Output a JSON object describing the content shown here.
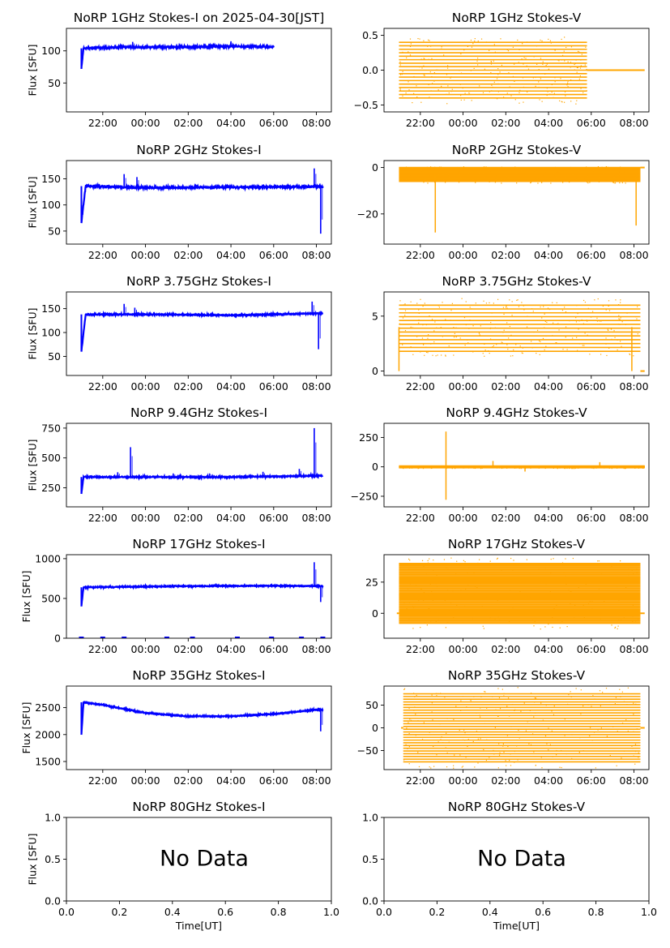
{
  "figure": {
    "rows": 7,
    "cols": 2,
    "colors": {
      "stokes_i": "#0000ff",
      "stokes_v": "#ffa500",
      "axis": "#000000"
    },
    "time_ticks": [
      "22:00",
      "00:00",
      "02:00",
      "04:00",
      "06:00",
      "08:00"
    ]
  },
  "chart_data": [
    {
      "id": "1ghz-i",
      "type": "scatter",
      "series_type": "I",
      "title": "NoRP 1GHz Stokes-I on 2025-04-30[JST]",
      "ylabel": "Flux [SFU]",
      "ylim": [
        5,
        135
      ],
      "yticks": [
        50,
        100
      ],
      "xlim_hours": [
        -3.7,
        8.7
      ],
      "t_start": -3.0,
      "t_end": 6.0,
      "baseline": 105,
      "start_value": 72,
      "noise": 2,
      "spike_times": [
        -0.6,
        4.0
      ],
      "spike_heights": [
        8,
        8
      ],
      "points": [
        [
          -3.0,
          72
        ],
        [
          -2.9,
          104
        ],
        [
          -1.0,
          106
        ],
        [
          0.0,
          106
        ],
        [
          2.0,
          106
        ],
        [
          4.0,
          107
        ],
        [
          6.0,
          106
        ]
      ]
    },
    {
      "id": "1ghz-v",
      "type": "scatter",
      "series_type": "V",
      "title": "NoRP 1GHz Stokes-V",
      "ylabel": "",
      "ylim": [
        -0.6,
        0.6
      ],
      "yticks": [
        -0.5,
        0.0,
        0.5
      ],
      "xlim_hours": [
        -3.7,
        8.7
      ],
      "t_start": -3.0,
      "t_end": 5.8,
      "band_min": -0.4,
      "band_max": 0.4,
      "band_step": 0.05,
      "tail_end": 8.5,
      "tail_value": 0.0
    },
    {
      "id": "2ghz-i",
      "type": "scatter",
      "series_type": "I",
      "title": "NoRP 2GHz Stokes-I",
      "ylabel": "Flux [SFU]",
      "ylim": [
        25,
        185
      ],
      "yticks": [
        50,
        100,
        150
      ],
      "xlim_hours": [
        -3.7,
        8.7
      ],
      "t_start": -3.0,
      "t_end": 8.3,
      "baseline": 133,
      "start_value": 66,
      "noise": 3,
      "spike_times": [
        -1.0,
        -0.4,
        7.9,
        8.2
      ],
      "spike_heights": [
        25,
        20,
        35,
        -90
      ],
      "points": [
        [
          -3.0,
          66
        ],
        [
          -2.8,
          136
        ],
        [
          0.0,
          133
        ],
        [
          4.0,
          134
        ],
        [
          8.0,
          135
        ]
      ]
    },
    {
      "id": "2ghz-v",
      "type": "scatter",
      "series_type": "V",
      "title": "NoRP 2GHz Stokes-V",
      "ylabel": "",
      "ylim": [
        -33,
        3
      ],
      "yticks": [
        -20,
        0
      ],
      "xlim_hours": [
        -3.7,
        8.7
      ],
      "t_start": -3.0,
      "t_end": 8.3,
      "band_min": -6,
      "band_max": 0,
      "band_step": 0.4,
      "tail_end": 8.5,
      "tail_value": 0,
      "dips": [
        [
          -1.3,
          -28
        ],
        [
          8.1,
          -25
        ]
      ]
    },
    {
      "id": "3_75ghz-i",
      "type": "scatter",
      "series_type": "I",
      "title": "NoRP 3.75GHz Stokes-I",
      "ylabel": "Flux [SFU]",
      "ylim": [
        10,
        185
      ],
      "yticks": [
        50,
        100,
        150
      ],
      "xlim_hours": [
        -3.7,
        8.7
      ],
      "t_start": -3.0,
      "t_end": 8.3,
      "baseline": 138,
      "start_value": 60,
      "noise": 2,
      "spike_times": [
        -1.0,
        -0.5,
        7.8,
        8.1
      ],
      "spike_heights": [
        22,
        14,
        25,
        -75
      ],
      "points": [
        [
          -3.0,
          60
        ],
        [
          -2.8,
          138
        ],
        [
          0.0,
          138
        ],
        [
          4.0,
          136
        ],
        [
          8.0,
          140
        ]
      ]
    },
    {
      "id": "3_75ghz-v",
      "type": "scatter",
      "series_type": "V",
      "title": "NoRP 3.75GHz Stokes-V",
      "ylabel": "",
      "ylim": [
        -0.4,
        7.2
      ],
      "yticks": [
        0,
        5
      ],
      "xlim_hours": [
        -3.7,
        8.7
      ],
      "t_start": -3.0,
      "t_end": 8.3,
      "band_min": 1.8,
      "band_max": 6.2,
      "band_step": 0.35,
      "tail_end": 8.5,
      "tail_value": 0,
      "dips": [
        [
          -3.0,
          0
        ],
        [
          7.9,
          0
        ]
      ]
    },
    {
      "id": "9_4ghz-i",
      "type": "scatter",
      "series_type": "I",
      "title": "NoRP 9.4GHz Stokes-I",
      "ylabel": "Flux [SFU]",
      "ylim": [
        90,
        790
      ],
      "yticks": [
        250,
        500,
        750
      ],
      "xlim_hours": [
        -3.7,
        8.7
      ],
      "t_start": -3.0,
      "t_end": 8.3,
      "baseline": 340,
      "start_value": 200,
      "noise": 8,
      "spike_times": [
        -0.7,
        -1.3,
        1.3,
        3.0,
        5.5,
        7.2,
        7.9
      ],
      "spike_heights": [
        250,
        40,
        30,
        30,
        40,
        60,
        400
      ],
      "points": [
        [
          -3.0,
          200
        ],
        [
          -2.9,
          340
        ],
        [
          4.0,
          340
        ],
        [
          8.0,
          350
        ]
      ]
    },
    {
      "id": "9_4ghz-v",
      "type": "scatter",
      "series_type": "V",
      "title": "NoRP 9.4GHz Stokes-V",
      "ylabel": "",
      "ylim": [
        -340,
        370
      ],
      "yticks": [
        -250,
        0,
        250
      ],
      "xlim_hours": [
        -3.7,
        8.7
      ],
      "t_start": -3.0,
      "t_end": 8.5,
      "band_min": -8,
      "band_max": 8,
      "band_step": 2,
      "tail_end": 8.5,
      "tail_value": 0,
      "dips": [
        [
          -0.8,
          300
        ],
        [
          -0.8,
          -280
        ],
        [
          1.4,
          50
        ],
        [
          2.9,
          -40
        ],
        [
          6.4,
          40
        ]
      ]
    },
    {
      "id": "17ghz-i",
      "type": "scatter",
      "series_type": "I",
      "title": "NoRP 17GHz Stokes-I",
      "ylabel": "Flux [SFU]",
      "ylim": [
        0,
        1050
      ],
      "yticks": [
        0,
        500,
        1000
      ],
      "xlim_hours": [
        -3.7,
        8.7
      ],
      "t_start": -3.0,
      "t_end": 8.3,
      "baseline": 650,
      "start_value": 400,
      "noise": 10,
      "spike_times": [
        7.9,
        8.2
      ],
      "spike_heights": [
        300,
        -200
      ],
      "points": [
        [
          -3.0,
          400
        ],
        [
          -2.9,
          640
        ],
        [
          2.0,
          655
        ],
        [
          6.0,
          660
        ],
        [
          8.0,
          655
        ]
      ],
      "zero_marks": [
        -3.0,
        -2.0,
        -1.0,
        1.0,
        2.2,
        4.3,
        5.9,
        7.3,
        8.3
      ]
    },
    {
      "id": "17ghz-v",
      "type": "scatter",
      "series_type": "V",
      "title": "NoRP 17GHz Stokes-V",
      "ylabel": "",
      "ylim": [
        -20,
        47
      ],
      "yticks": [
        0,
        25
      ],
      "xlim_hours": [
        -3.7,
        8.7
      ],
      "t_start": -3.0,
      "t_end": 8.3,
      "band_min": -8,
      "band_max": 40,
      "band_step": 1.0,
      "tail_end": 8.5,
      "tail_value": 0,
      "head_value": 0
    },
    {
      "id": "35ghz-i",
      "type": "scatter",
      "series_type": "I",
      "title": "NoRP 35GHz Stokes-I",
      "ylabel": "Flux [SFU]",
      "ylim": [
        1350,
        2900
      ],
      "yticks": [
        1500,
        2000,
        2500
      ],
      "xlim_hours": [
        -3.7,
        8.7
      ],
      "t_start": -3.0,
      "t_end": 8.3,
      "baseline": 2350,
      "start_value": 2000,
      "noise": 15,
      "spike_times": [
        8.2
      ],
      "spike_heights": [
        -400
      ],
      "points": [
        [
          -3.0,
          2000
        ],
        [
          -2.9,
          2600
        ],
        [
          -2.0,
          2550
        ],
        [
          0.0,
          2400
        ],
        [
          2.0,
          2340
        ],
        [
          4.0,
          2340
        ],
        [
          6.0,
          2380
        ],
        [
          8.0,
          2460
        ]
      ]
    },
    {
      "id": "35ghz-v",
      "type": "scatter",
      "series_type": "V",
      "title": "NoRP 35GHz Stokes-V",
      "ylabel": "",
      "ylim": [
        -92,
        92
      ],
      "yticks": [
        -50,
        0,
        50
      ],
      "xlim_hours": [
        -3.7,
        8.7
      ],
      "t_start": -2.8,
      "t_end": 8.3,
      "band_min": -75,
      "band_max": 75,
      "band_step": 6,
      "tail_end": 8.5,
      "tail_value": 0,
      "head_value": 0
    },
    {
      "id": "80ghz-i",
      "type": "empty",
      "title": "NoRP 80GHz Stokes-I",
      "ylabel": "Flux [SFU]",
      "xlabel": "Time[UT]",
      "ylim": [
        0,
        1
      ],
      "xlim": [
        0,
        1
      ],
      "yticks": [
        0.0,
        0.5,
        1.0
      ],
      "xticks": [
        0.0,
        0.2,
        0.4,
        0.6,
        0.8,
        1.0
      ],
      "message": "No Data"
    },
    {
      "id": "80ghz-v",
      "type": "empty",
      "title": "NoRP 80GHz Stokes-V",
      "ylabel": "",
      "xlabel": "Time[UT]",
      "ylim": [
        0,
        1
      ],
      "xlim": [
        0,
        1
      ],
      "yticks": [
        0.0,
        0.5,
        1.0
      ],
      "xticks": [
        0.0,
        0.2,
        0.4,
        0.6,
        0.8,
        1.0
      ],
      "message": "No Data"
    }
  ]
}
